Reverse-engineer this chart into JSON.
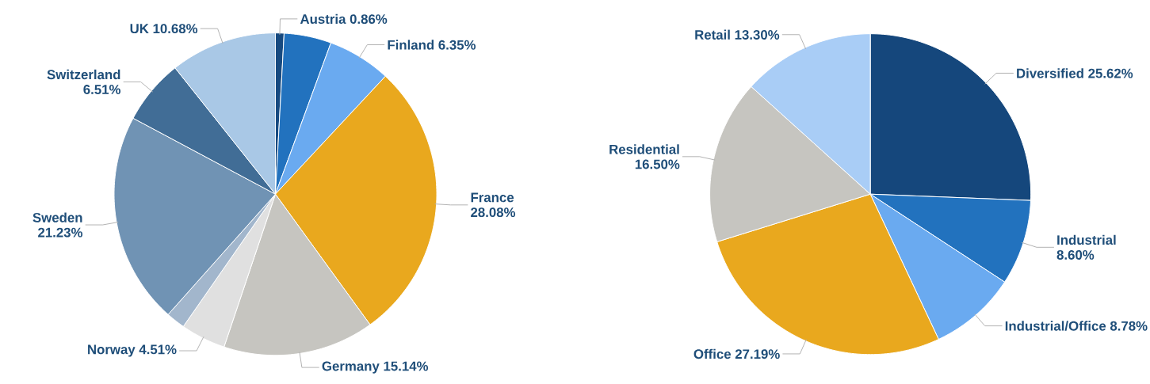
{
  "chart_data": [
    {
      "type": "pie",
      "categories": [
        "Austria",
        null,
        "Finland",
        "France",
        "Germany",
        "Norway",
        null,
        "Sweden",
        "Switzerland",
        "UK"
      ],
      "values": [
        0.86,
        4.73,
        6.35,
        28.08,
        15.14,
        4.51,
        1.91,
        21.23,
        6.51,
        10.68
      ],
      "value_labels": [
        "0.86%",
        null,
        "6.35%",
        "28.08%",
        "15.14%",
        "4.51%",
        null,
        "21.23%",
        "6.51%",
        "10.68%"
      ],
      "colors": [
        "#174a80",
        "#2272be",
        "#6aaaf0",
        "#e9a81e",
        "#c6c5c0",
        "#e0e0e0",
        "#a2b6cc",
        "#7093b4",
        "#416d96",
        "#a9c8e6"
      ]
    },
    {
      "type": "pie",
      "categories": [
        "Diversified",
        "Industrial",
        "Industrial/Office",
        "Office",
        "Residential",
        "Retail"
      ],
      "values": [
        25.62,
        8.6,
        8.78,
        27.19,
        16.5,
        13.3
      ],
      "value_labels": [
        "25.62%",
        "8.60%",
        "8.78%",
        "27.19%",
        "16.50%",
        "13.30%"
      ],
      "colors": [
        "#15477c",
        "#2272be",
        "#6aaaf0",
        "#e9a81e",
        "#c6c5c0",
        "#a9cdf6"
      ]
    }
  ]
}
